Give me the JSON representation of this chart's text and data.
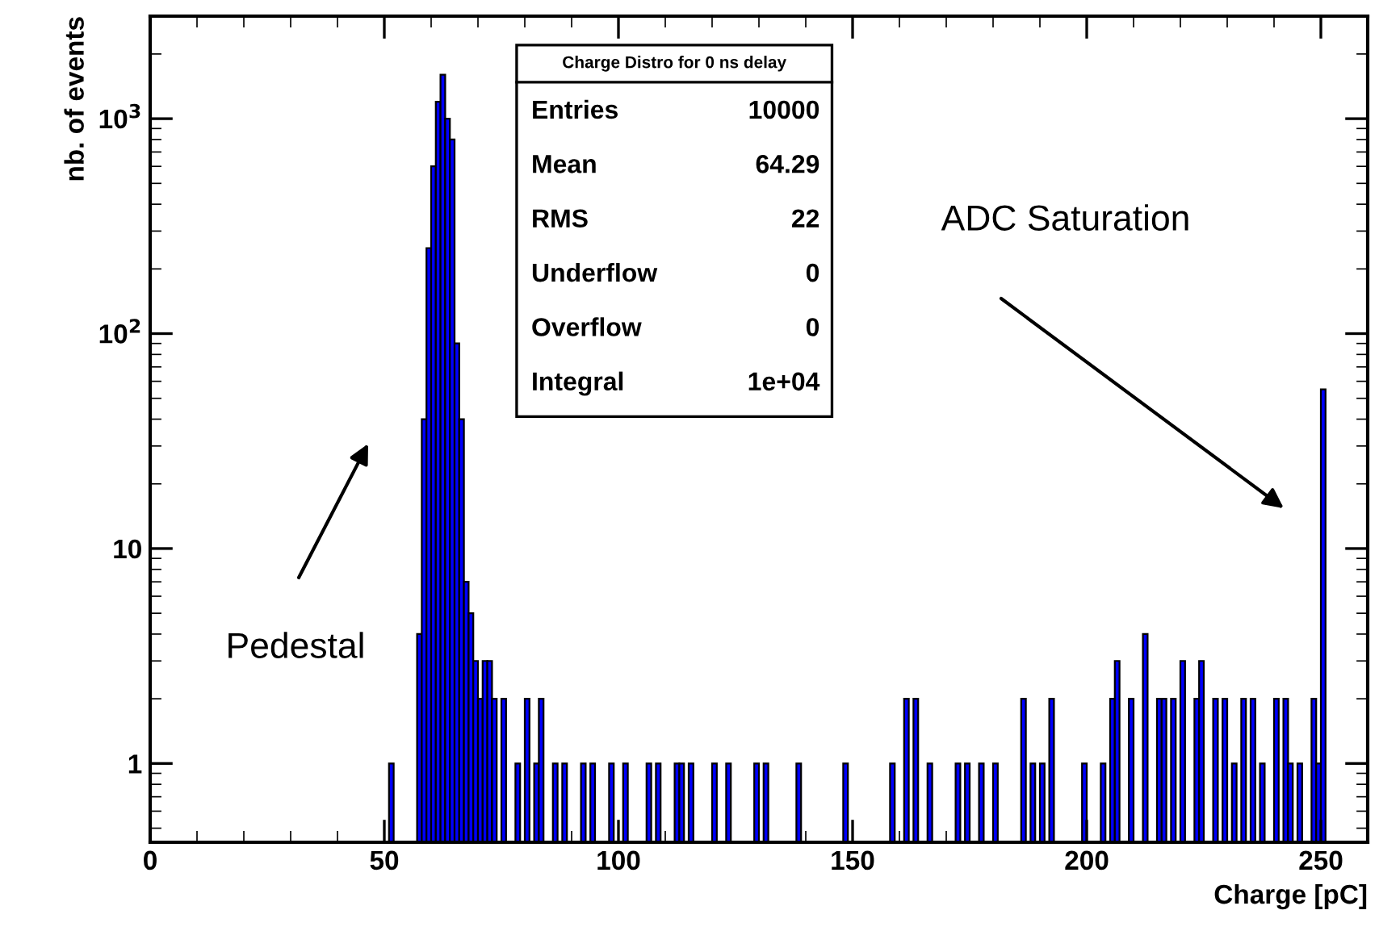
{
  "chart_data": {
    "type": "histogram",
    "title": "Charge Distro for 0 ns delay",
    "xlabel": "Charge [pC]",
    "ylabel": "nb. of events",
    "bins": [
      51,
      52,
      57,
      58,
      59,
      60,
      61,
      62,
      63,
      64,
      65,
      66,
      67,
      68,
      69,
      70,
      71,
      72,
      73,
      74,
      75,
      76,
      78,
      79,
      80,
      81,
      82,
      83,
      84,
      86,
      87,
      88,
      89,
      92,
      93,
      94,
      95,
      98,
      99,
      101,
      102,
      106,
      107,
      108,
      109,
      112,
      113,
      114,
      115,
      116,
      120,
      121,
      123,
      124,
      129,
      130,
      131,
      132,
      138,
      139,
      148,
      149,
      158,
      159,
      161,
      162,
      163,
      164,
      166,
      167,
      172,
      173,
      174,
      175,
      177,
      178,
      180,
      181,
      186,
      187,
      188,
      189,
      190,
      191,
      192,
      193,
      199,
      200,
      203,
      204,
      205,
      206,
      207,
      209,
      210,
      212,
      213,
      215,
      216,
      217,
      218,
      219,
      220,
      221,
      223,
      224,
      225,
      227,
      228,
      229,
      230,
      231,
      232,
      233,
      234,
      235,
      236,
      237,
      238,
      240,
      241,
      242,
      243,
      244,
      245,
      246,
      248,
      249,
      250,
      251
    ],
    "values": [
      1,
      null,
      4,
      40,
      250,
      600,
      1200,
      1600,
      1000,
      800,
      90,
      40,
      7,
      5,
      3,
      2,
      3,
      3,
      2,
      null,
      2,
      null,
      1,
      null,
      2,
      null,
      1,
      2,
      null,
      1,
      null,
      1,
      null,
      1,
      null,
      1,
      null,
      1,
      null,
      1,
      null,
      1,
      null,
      1,
      null,
      1,
      1,
      null,
      1,
      null,
      1,
      null,
      1,
      null,
      1,
      null,
      1,
      null,
      1,
      null,
      1,
      null,
      1,
      null,
      2,
      null,
      2,
      null,
      1,
      null,
      1,
      null,
      1,
      null,
      1,
      null,
      1,
      null,
      2,
      null,
      1,
      null,
      1,
      null,
      2,
      null,
      1,
      null,
      1,
      null,
      2,
      3,
      null,
      2,
      null,
      4,
      null,
      2,
      2,
      null,
      2,
      null,
      3,
      null,
      2,
      3,
      null,
      2,
      null,
      2,
      null,
      1,
      null,
      2,
      null,
      2,
      null,
      1,
      null,
      2,
      null,
      2,
      1,
      null,
      1,
      null,
      2,
      1,
      55
    ],
    "color": "#0000ff",
    "log": "y",
    "xlim": [
      0,
      260
    ],
    "xticks": [
      0,
      50,
      100,
      150,
      200,
      250
    ],
    "ylim": [
      0.43,
      3000
    ],
    "yticks": [
      1,
      10,
      {
        "value": 100,
        "label": "10$^{2}$"
      },
      {
        "value": 1000,
        "label": "10$^{3}$"
      }
    ],
    "grid": false,
    "legend": false,
    "annotations": [
      "Entries 10000",
      "Mean 64.29",
      "RMS 22",
      "Underflow 0",
      "Overflow 0",
      "Integral 1e+04",
      "Pedestal",
      "ADC Saturation"
    ]
  }
}
